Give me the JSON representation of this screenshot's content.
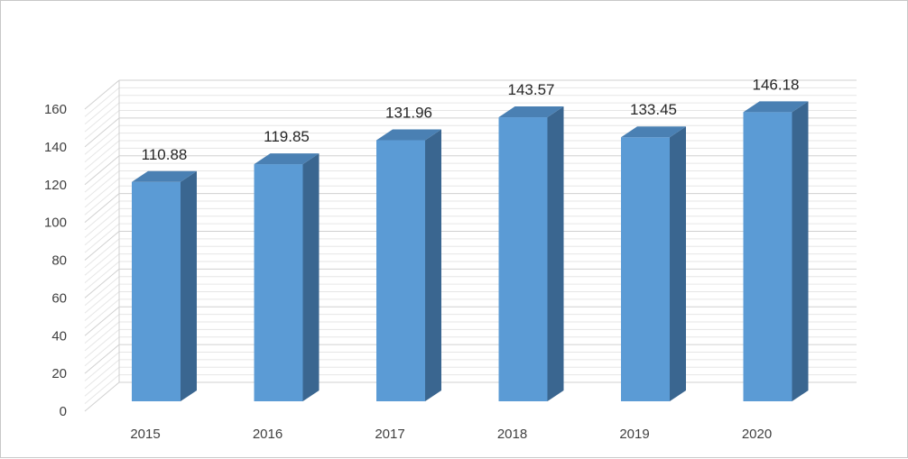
{
  "chart_data": {
    "type": "bar",
    "style": "3d-column",
    "categories": [
      "2015",
      "2016",
      "2017",
      "2018",
      "2019",
      "2020"
    ],
    "values": [
      110.88,
      119.85,
      131.96,
      143.57,
      133.45,
      146.18
    ],
    "data_labels": [
      "110.88",
      "119.85",
      "131.96",
      "143.57",
      "133.45",
      "146.18"
    ],
    "y_ticks": [
      "0",
      "20",
      "40",
      "60",
      "80",
      "100",
      "120",
      "140",
      "160"
    ],
    "ylim": [
      0,
      160
    ],
    "grid": true,
    "legend": "none",
    "colors": {
      "bar_front": "#5b9bd5",
      "bar_side": "#3a6690",
      "bar_top": "#4a80b3",
      "grid": "#d9d9d9"
    }
  }
}
